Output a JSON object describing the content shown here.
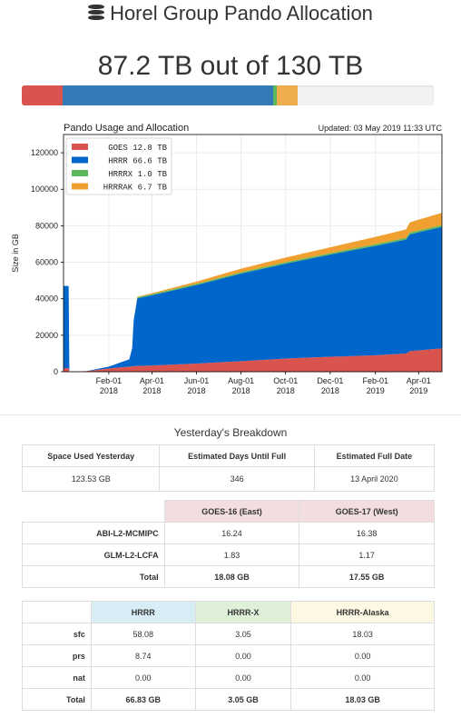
{
  "header": {
    "title": "Horel Group Pando Allocation",
    "icon": "database-icon"
  },
  "total": {
    "text": "87.2 TB out of 130 TB",
    "used_tb": 87.2,
    "capacity_tb": 130
  },
  "usage_bar": [
    {
      "name": "GOES",
      "tb": 12.8,
      "color": "#d9534f"
    },
    {
      "name": "HRRR",
      "tb": 66.6,
      "color": "#337ab7"
    },
    {
      "name": "HRRRX",
      "tb": 1.0,
      "color": "#5cb85c"
    },
    {
      "name": "HRRRAK",
      "tb": 6.7,
      "color": "#f0ad4e"
    }
  ],
  "chart_data": {
    "type": "area",
    "title": "Pando Usage and Allocation",
    "updated": "Updated: 03 May 2019 11:33 UTC",
    "ylabel": "Size in GB",
    "xlabel": "",
    "ylim": [
      0,
      130000
    ],
    "yticks": [
      "0",
      "20000",
      "40000",
      "60000",
      "80000",
      "100000",
      "120000"
    ],
    "ytick_values": [
      0,
      20000,
      40000,
      60000,
      80000,
      100000,
      120000
    ],
    "xlim": [
      "2017-12-01",
      "2019-05-03"
    ],
    "xticks": [
      {
        "date": "2018-02-01",
        "label1": "Feb-01",
        "label2": "2018"
      },
      {
        "date": "2018-04-01",
        "label1": "Apr-01",
        "label2": "2018"
      },
      {
        "date": "2018-06-01",
        "label1": "Jun-01",
        "label2": "2018"
      },
      {
        "date": "2018-08-01",
        "label1": "Aug-01",
        "label2": "2018"
      },
      {
        "date": "2018-10-01",
        "label1": "Oct-01",
        "label2": "2018"
      },
      {
        "date": "2018-12-01",
        "label1": "Dec-01",
        "label2": "2018"
      },
      {
        "date": "2019-02-01",
        "label1": "Feb-01",
        "label2": "2019"
      },
      {
        "date": "2019-04-01",
        "label1": "Apr-01",
        "label2": "2019"
      }
    ],
    "grid": true,
    "legend_position": "top-left",
    "x": [
      "2017-12-01",
      "2017-12-08",
      "2017-12-09",
      "2018-01-01",
      "2018-02-01",
      "2018-03-01",
      "2018-03-05",
      "2018-03-07",
      "2018-03-12",
      "2018-04-01",
      "2018-06-01",
      "2018-08-01",
      "2018-10-01",
      "2018-12-01",
      "2019-02-01",
      "2019-03-15",
      "2019-03-20",
      "2019-05-03"
    ],
    "series": [
      {
        "name": "GOES",
        "legend": "GOES 12.8 TB",
        "color": "#d9534f",
        "values": [
          2000,
          2000,
          0,
          300,
          1800,
          2800,
          3000,
          3100,
          3200,
          3400,
          4500,
          5800,
          7200,
          8200,
          9000,
          10000,
          11300,
          12800
        ]
      },
      {
        "name": "HRRR",
        "legend": "HRRR 66.6 TB",
        "color": "#0066cc",
        "values": [
          45000,
          45000,
          0,
          0,
          1000,
          4000,
          10000,
          25000,
          37000,
          38500,
          43000,
          48000,
          52000,
          56000,
          60000,
          62500,
          64000,
          66600
        ]
      },
      {
        "name": "HRRRX",
        "legend": "HRRRX 1.0 TB",
        "color": "#5cb85c",
        "values": [
          0,
          0,
          0,
          0,
          0,
          0,
          0,
          0,
          600,
          600,
          700,
          700,
          800,
          800,
          900,
          900,
          950,
          1000
        ]
      },
      {
        "name": "HRRRAK",
        "legend": "HRRRAK 6.7 TB",
        "color": "#f0a030",
        "values": [
          0,
          0,
          0,
          0,
          0,
          0,
          0,
          0,
          300,
          500,
          1200,
          2000,
          2600,
          3200,
          4000,
          4600,
          5600,
          6700
        ]
      }
    ]
  },
  "caption": "Yesterday's Breakdown",
  "summary": {
    "headers": [
      "Space Used Yesterday",
      "Estimated Days Until Full",
      "Estimated Full Date"
    ],
    "values": [
      "123.53 GB",
      "346",
      "13 April 2020"
    ]
  },
  "goes": {
    "columns": [
      {
        "label": "GOES-16 (East)",
        "bg": "#f2dede"
      },
      {
        "label": "GOES-17 (West)",
        "bg": "#f2dede"
      }
    ],
    "rows": [
      {
        "label": "ABI-L2-MCMIPC",
        "values": [
          "16.24",
          "16.38"
        ]
      },
      {
        "label": "GLM-L2-LCFA",
        "values": [
          "1.83",
          "1.17"
        ]
      },
      {
        "label": "Total",
        "values": [
          "18.08 GB",
          "17.55 GB"
        ]
      }
    ]
  },
  "hrrr": {
    "columns": [
      {
        "label": "HRRR",
        "bg": "#d9edf7"
      },
      {
        "label": "HRRR-X",
        "bg": "#dff0d8"
      },
      {
        "label": "HRRR-Alaska",
        "bg": "#fcf8e3"
      }
    ],
    "rows": [
      {
        "label": "sfc",
        "values": [
          "58.08",
          "3.05",
          "18.03"
        ]
      },
      {
        "label": "prs",
        "values": [
          "8.74",
          "0.00",
          "0.00"
        ]
      },
      {
        "label": "nat",
        "values": [
          "0.00",
          "0.00",
          "0.00"
        ]
      },
      {
        "label": "Total",
        "values": [
          "66.83 GB",
          "3.05 GB",
          "18.03 GB"
        ]
      }
    ]
  }
}
